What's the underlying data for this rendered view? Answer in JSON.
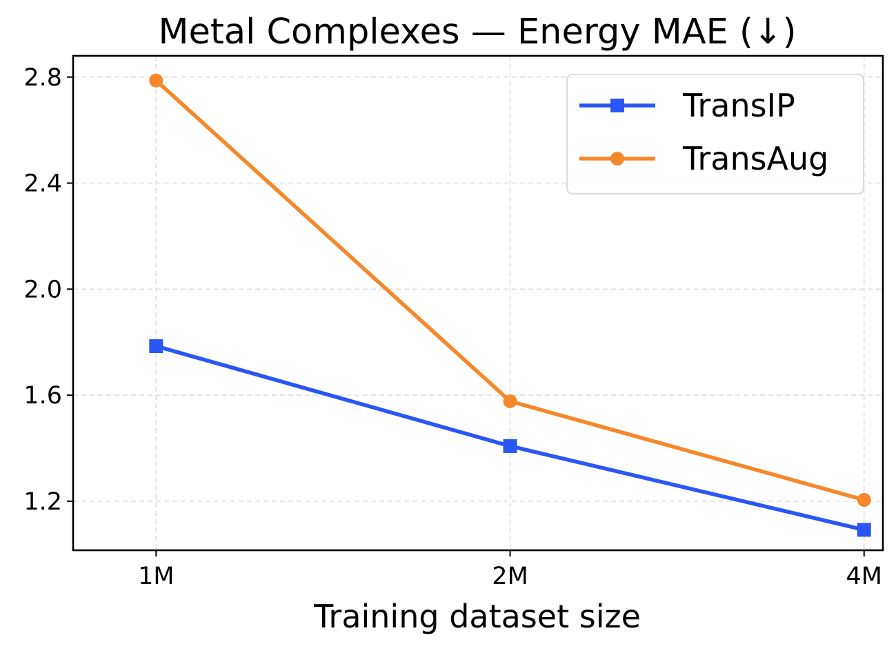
{
  "chart_data": {
    "type": "line",
    "title": "Metal Complexes — Energy MAE (↓)",
    "xlabel": "Training dataset size",
    "ylabel": "",
    "x": [
      1,
      2,
      4
    ],
    "x_tick_labels": [
      "1M",
      "2M",
      "4M"
    ],
    "xlim": [
      0.85,
      4.15
    ],
    "ylim": [
      1.015,
      2.88
    ],
    "y_ticks": [
      1.2,
      1.6,
      2.0,
      2.4,
      2.8
    ],
    "y_tick_labels": [
      "1.2",
      "1.6",
      "2.0",
      "2.4",
      "2.8"
    ],
    "grid": true,
    "legend_position": "top-right",
    "series": [
      {
        "name": "TransIP",
        "values": [
          1.785,
          1.408,
          1.092
        ],
        "color": "#2a56f6",
        "marker": "square"
      },
      {
        "name": "TransAug",
        "values": [
          2.787,
          1.577,
          1.205
        ],
        "color": "#f5882a",
        "marker": "circle"
      }
    ]
  }
}
